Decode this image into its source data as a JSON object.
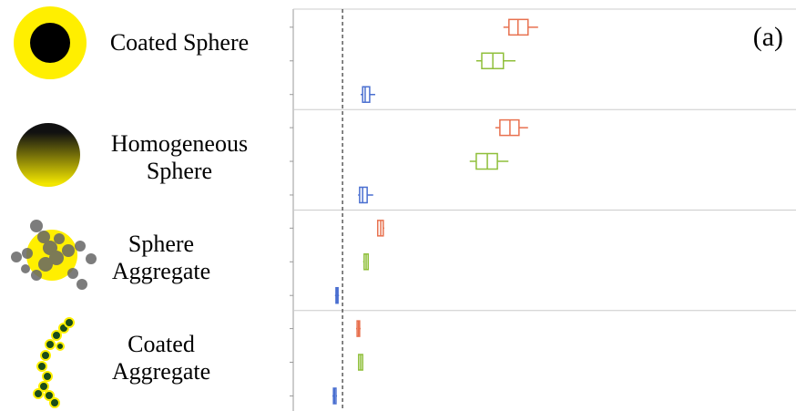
{
  "chart_data": {
    "type": "boxplot",
    "annotation": "(a)",
    "categories": [
      "Coated Sphere",
      "Homogeneous Sphere",
      "Sphere Aggregate",
      "Coated Aggregate"
    ],
    "xlim": [
      0,
      100
    ],
    "reference_line": 9.8,
    "series": [
      {
        "color": "#e8714f",
        "values": [
          [
            41.8,
            42.9,
            44.7,
            46.7,
            48.7
          ],
          [
            40.2,
            41.1,
            43.1,
            44.9,
            46.7
          ],
          [
            16.7,
            16.8,
            17.4,
            17.9,
            18.1
          ],
          [
            12.5,
            12.7,
            13.0,
            13.2,
            13.4
          ]
        ]
      },
      {
        "color": "#8fbf3a",
        "values": [
          [
            36.4,
            37.5,
            39.7,
            41.8,
            44.2
          ],
          [
            35.1,
            36.4,
            38.6,
            40.6,
            42.8
          ],
          [
            13.9,
            14.1,
            14.5,
            14.9,
            15.0
          ],
          [
            12.9,
            13.0,
            13.4,
            13.8,
            13.9
          ]
        ]
      },
      {
        "color": "#4a6fd0",
        "values": [
          [
            13.4,
            13.8,
            14.3,
            15.2,
            16.3
          ],
          [
            12.9,
            13.2,
            13.8,
            14.7,
            15.9
          ],
          [
            8.3,
            8.5,
            8.7,
            8.9,
            9.1
          ],
          [
            7.8,
            8.0,
            8.2,
            8.5,
            8.7
          ]
        ]
      }
    ]
  }
}
